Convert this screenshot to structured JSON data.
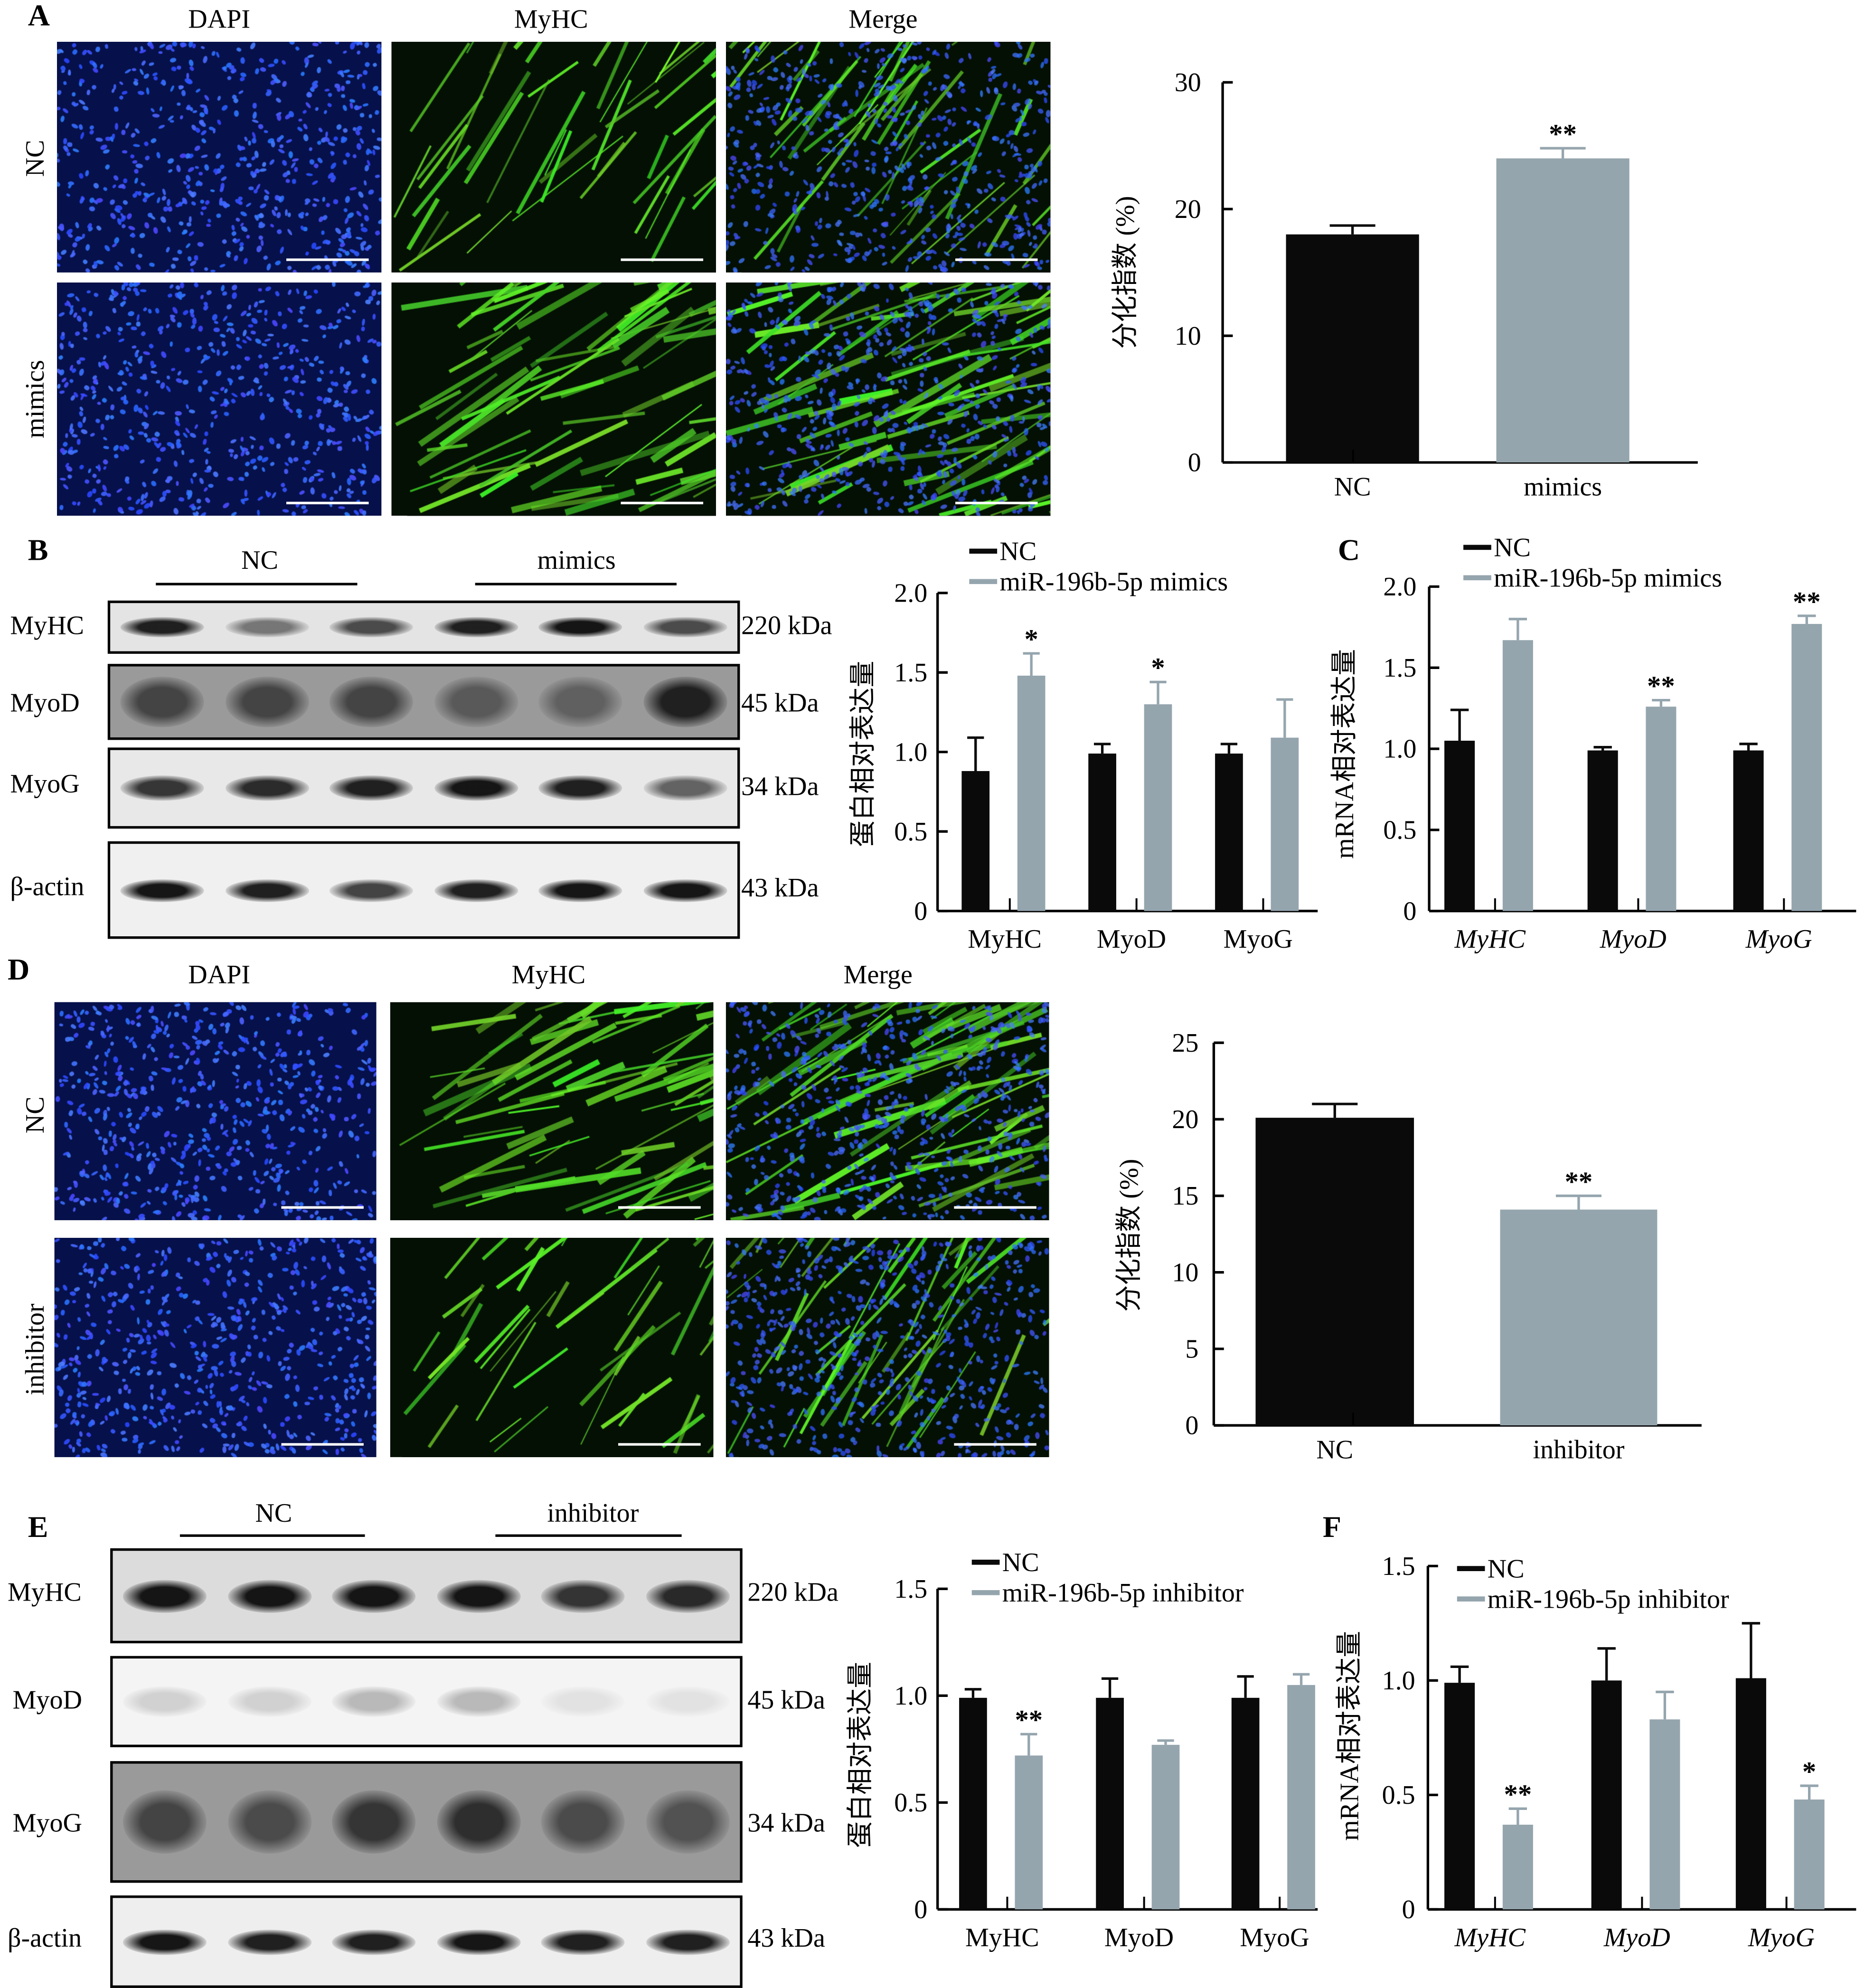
{
  "panels": {
    "A": {
      "label": "A",
      "columns": [
        "DAPI",
        "MyHC",
        "Merge"
      ],
      "rows": [
        "NC",
        "mimics"
      ]
    },
    "B": {
      "label": "B",
      "groups": [
        "NC",
        "mimics"
      ],
      "proteins": [
        {
          "name": "MyHC",
          "size": "220 kDa"
        },
        {
          "name": "MyoD",
          "size": "45 kDa"
        },
        {
          "name": "MyoG",
          "size": "34 kDa"
        },
        {
          "name": "β-actin",
          "size": "43 kDa"
        }
      ]
    },
    "C": {
      "label": "C"
    },
    "D": {
      "label": "D",
      "columns": [
        "DAPI",
        "MyHC",
        "Merge"
      ],
      "rows": [
        "NC",
        "inhibitor"
      ]
    },
    "E": {
      "label": "E",
      "groups": [
        "NC",
        "inhibitor"
      ],
      "proteins": [
        {
          "name": "MyHC",
          "size": "220 kDa"
        },
        {
          "name": "MyoD",
          "size": "45 kDa"
        },
        {
          "name": "MyoG",
          "size": "34 kDa"
        },
        {
          "name": "β-actin",
          "size": "43 kDa"
        }
      ]
    },
    "F": {
      "label": "F"
    }
  },
  "colors": {
    "nc": "#0a0a0a",
    "treatment": "#95a5ae",
    "dapi": "#2f4cff",
    "myhc": "#3cdc1e"
  },
  "chart_data": [
    {
      "type": "bar",
      "panel": "A",
      "categories": [
        "NC",
        "mimics"
      ],
      "series": [
        {
          "values": [
            18.0,
            24.0
          ],
          "errors": [
            0.7,
            0.8
          ],
          "colors": [
            "#0a0a0a",
            "#95a5ae"
          ]
        }
      ],
      "significance": [
        "",
        "**"
      ],
      "ylabel": "分化指数 (%)",
      "ylim": [
        0,
        30
      ],
      "yticks": [
        "0",
        "10",
        "20",
        "30"
      ],
      "grid": false
    },
    {
      "type": "bar",
      "panel": "B",
      "categories": [
        "MyHC",
        "MyoD",
        "MyoG"
      ],
      "series": [
        {
          "name": "NC",
          "values": [
            0.88,
            0.99,
            0.99
          ],
          "errors": [
            0.21,
            0.06,
            0.06
          ]
        },
        {
          "name": "miR-196b-5p  mimics",
          "values": [
            1.48,
            1.3,
            1.09
          ],
          "errors": [
            0.14,
            0.14,
            0.24
          ]
        }
      ],
      "significance": [
        [
          "",
          "*"
        ],
        [
          "",
          "*"
        ],
        [
          "",
          ""
        ]
      ],
      "ylabel": "蛋白相对表达量",
      "ylim": [
        0,
        2.0
      ],
      "yticks": [
        "0",
        "0.5",
        "1.0",
        "1.5",
        "2.0"
      ],
      "legend": "top",
      "grid": false,
      "category_style": "normal"
    },
    {
      "type": "bar",
      "panel": "C",
      "categories": [
        "MyHC",
        "MyoD",
        "MyoG"
      ],
      "series": [
        {
          "name": "NC",
          "values": [
            1.05,
            0.99,
            0.99
          ],
          "errors": [
            0.19,
            0.02,
            0.04
          ]
        },
        {
          "name": "miR-196b-5p mimics",
          "values": [
            1.67,
            1.26,
            1.77
          ],
          "errors": [
            0.13,
            0.04,
            0.05
          ]
        }
      ],
      "significance": [
        [
          "",
          ""
        ],
        [
          "",
          "**"
        ],
        [
          "",
          "**"
        ]
      ],
      "ylabel": "mRNA相对表达量",
      "ylim": [
        0,
        2.0
      ],
      "yticks": [
        "0",
        "0.5",
        "1.0",
        "1.5",
        "2.0"
      ],
      "legend": "top",
      "grid": false,
      "category_style": "italic"
    },
    {
      "type": "bar",
      "panel": "D",
      "categories": [
        "NC",
        "inhibitor"
      ],
      "series": [
        {
          "values": [
            20.1,
            14.1
          ],
          "errors": [
            0.9,
            0.9
          ],
          "colors": [
            "#0a0a0a",
            "#95a5ae"
          ]
        }
      ],
      "significance": [
        "",
        "**"
      ],
      "ylabel": "分化指数 (%)",
      "ylim": [
        0,
        25
      ],
      "yticks": [
        "0",
        "5",
        "10",
        "15",
        "20",
        "25"
      ],
      "grid": false
    },
    {
      "type": "bar",
      "panel": "E",
      "categories": [
        "MyHC",
        "MyoD",
        "MyoG"
      ],
      "series": [
        {
          "name": "NC",
          "values": [
            0.99,
            0.99,
            0.99
          ],
          "errors": [
            0.04,
            0.09,
            0.1
          ]
        },
        {
          "name": "miR-196b-5p inhibitor",
          "values": [
            0.72,
            0.77,
            1.05
          ],
          "errors": [
            0.1,
            0.02,
            0.05
          ]
        }
      ],
      "significance": [
        [
          "",
          "**"
        ],
        [
          "",
          ""
        ],
        [
          "",
          ""
        ]
      ],
      "ylabel": "蛋白相对表达量",
      "ylim": [
        0,
        1.5
      ],
      "yticks": [
        "0",
        "0.5",
        "1.0",
        "1.5"
      ],
      "legend": "top",
      "grid": false,
      "category_style": "normal"
    },
    {
      "type": "bar",
      "panel": "F",
      "categories": [
        "MyHC",
        "MyoD",
        "MyoG"
      ],
      "series": [
        {
          "name": "NC",
          "values": [
            0.99,
            1.0,
            1.01
          ],
          "errors": [
            0.07,
            0.14,
            0.24
          ]
        },
        {
          "name": "miR-196b-5p inhibitor",
          "values": [
            0.37,
            0.83,
            0.48
          ],
          "errors": [
            0.07,
            0.12,
            0.06
          ]
        }
      ],
      "significance": [
        [
          "",
          "**"
        ],
        [
          "",
          ""
        ],
        [
          "",
          "*"
        ]
      ],
      "ylabel": "mRNA相对表达量",
      "ylim": [
        0,
        1.5
      ],
      "yticks": [
        "0",
        "0.5",
        "1.0",
        "1.5"
      ],
      "legend": "top",
      "grid": false,
      "category_style": "italic"
    }
  ]
}
